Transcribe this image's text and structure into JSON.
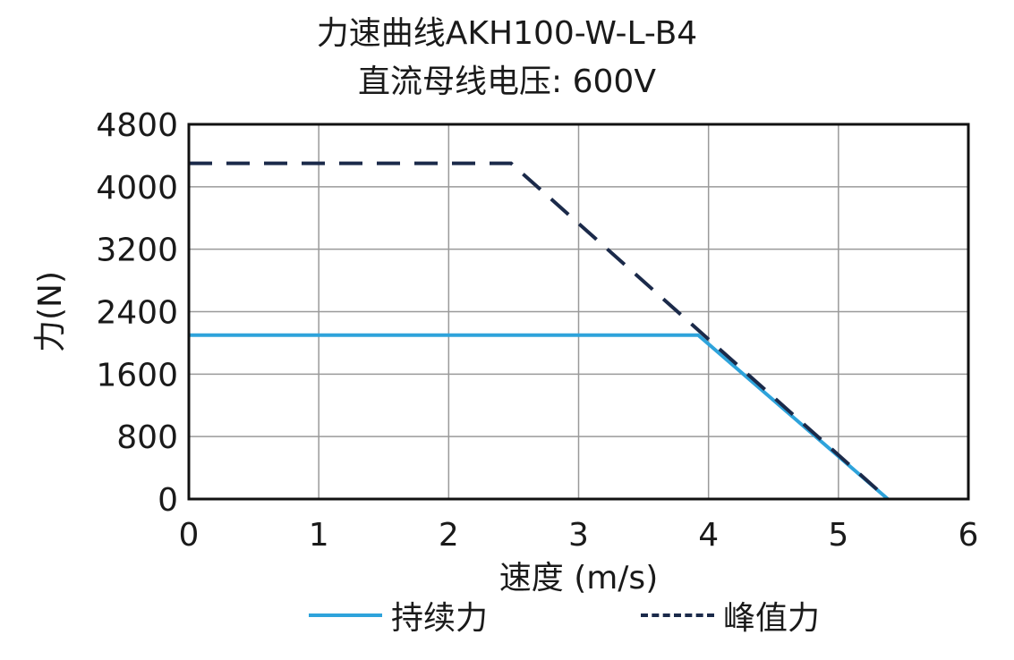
{
  "title_line1": "力速曲线AKH100-W-L-B4",
  "title_line2": "直流母线电压: 600V",
  "chart_data": {
    "type": "line",
    "xlabel": "速度 (m/s)",
    "ylabel": "力(N)",
    "xlim": [
      0,
      6
    ],
    "ylim": [
      0,
      4800
    ],
    "xticks": [
      0,
      1,
      2,
      3,
      4,
      5,
      6
    ],
    "yticks": [
      0,
      800,
      1600,
      2400,
      3200,
      4000,
      4800
    ],
    "grid": true,
    "legend_position": "bottom",
    "series": [
      {
        "name": "持续力",
        "color": "#2ea3db",
        "style": "solid",
        "points": [
          [
            0,
            2100
          ],
          [
            3.92,
            2100
          ],
          [
            5.38,
            0
          ]
        ]
      },
      {
        "name": "峰值力",
        "color": "#1b2a4a",
        "style": "dashed",
        "points": [
          [
            0,
            4300
          ],
          [
            2.48,
            4300
          ],
          [
            5.38,
            0
          ]
        ]
      }
    ]
  }
}
